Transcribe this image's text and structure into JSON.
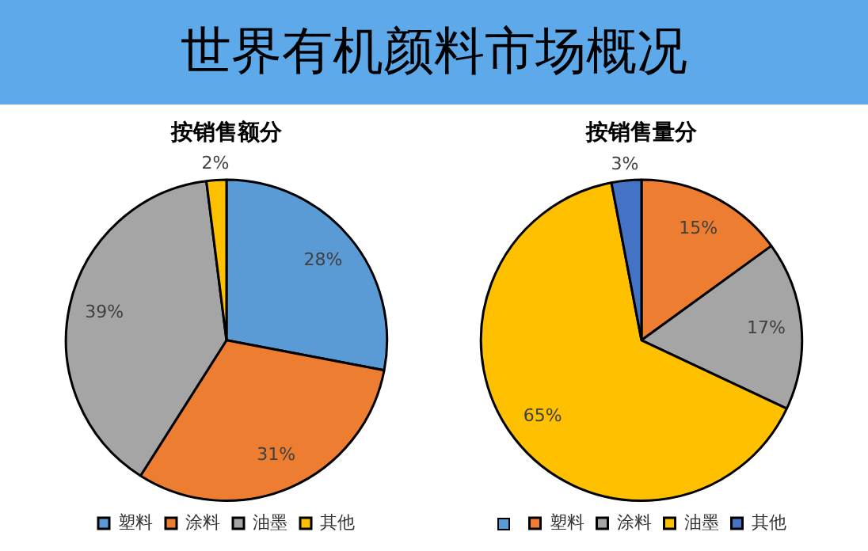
{
  "chart_data": [
    {
      "type": "other",
      "title": "世界有机颜料市场概况"
    },
    {
      "type": "pie",
      "title": "按销售额分",
      "categories": [
        "塑料",
        "涂料",
        "油墨",
        "其他"
      ],
      "values": [
        28,
        31,
        39,
        2
      ],
      "colors": [
        "#5b9bd5",
        "#ed7d31",
        "#a5a5a5",
        "#ffc000"
      ],
      "value_labels": [
        "28%",
        "31%",
        "39%",
        "2%"
      ],
      "legend": "bottom"
    },
    {
      "type": "pie",
      "title": "按销售量分",
      "categories": [
        null,
        "塑料",
        "涂料",
        "油墨",
        "其他"
      ],
      "values": [
        0,
        15,
        17,
        65,
        3
      ],
      "colors": [
        "#5b9bd5",
        "#ed7d31",
        "#a5a5a5",
        "#ffc000",
        "#4472c4"
      ],
      "value_labels": [
        null,
        "15%",
        "17%",
        "65%",
        "3%"
      ],
      "legend": "bottom"
    }
  ]
}
